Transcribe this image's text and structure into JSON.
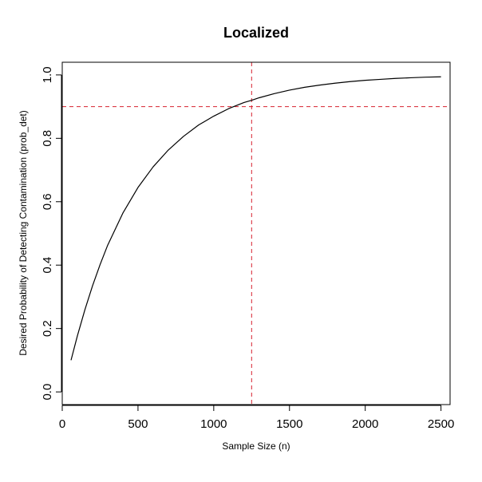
{
  "chart_data": {
    "type": "line",
    "title": "Localized",
    "xlabel": "Sample Size (n)",
    "ylabel": "Desired Probability of Detecting Contamination (prob_det)",
    "xlim": [
      0,
      2560
    ],
    "ylim": [
      -0.04,
      1.04
    ],
    "xticks": [
      0,
      500,
      1000,
      1500,
      2000,
      2500
    ],
    "xtick_labels": [
      "0",
      "500",
      "1000",
      "1500",
      "2000",
      "2500"
    ],
    "yticks": [
      0.0,
      0.2,
      0.4,
      0.6,
      0.8,
      1.0
    ],
    "ytick_labels": [
      "0.0",
      "0.2",
      "0.4",
      "0.6",
      "0.8",
      "1.0"
    ],
    "grid": false,
    "series": [
      {
        "color": "#000000",
        "x": [
          58,
          100,
          150,
          200,
          250,
          300,
          400,
          500,
          600,
          700,
          800,
          900,
          1000,
          1100,
          1200,
          1250,
          1300,
          1400,
          1500,
          1600,
          1700,
          1800,
          1900,
          2000,
          2100,
          2200,
          2300,
          2400,
          2500
        ],
        "y": [
          0.1,
          0.177,
          0.26,
          0.335,
          0.402,
          0.463,
          0.564,
          0.645,
          0.71,
          0.763,
          0.806,
          0.842,
          0.87,
          0.894,
          0.913,
          0.92,
          0.928,
          0.941,
          0.952,
          0.961,
          0.968,
          0.974,
          0.979,
          0.983,
          0.986,
          0.989,
          0.991,
          0.993,
          0.994
        ]
      }
    ],
    "reference_lines": [
      {
        "orientation": "vertical",
        "value": 1250,
        "color": "#d6202e",
        "style": "dashed"
      },
      {
        "orientation": "horizontal",
        "value": 0.9,
        "color": "#d6202e",
        "style": "dashed"
      }
    ]
  }
}
